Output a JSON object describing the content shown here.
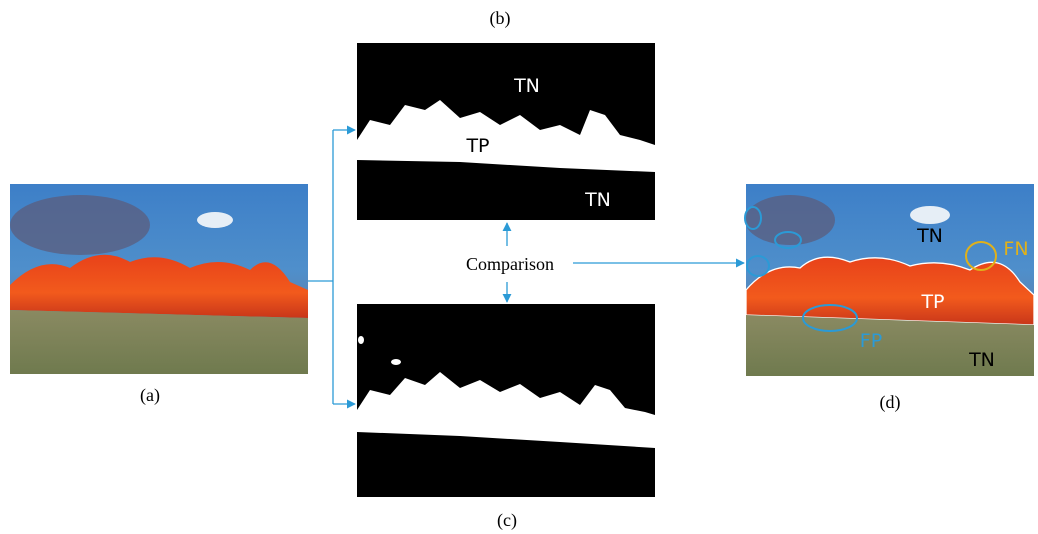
{
  "panels": {
    "a": {
      "label": "(a)"
    },
    "b": {
      "label": "(b)",
      "regions": [
        "TN",
        "TP",
        "TN"
      ]
    },
    "c": {
      "label": "(c)"
    },
    "d": {
      "label": "(d)",
      "regions": [
        "TN",
        "FN",
        "TP",
        "FP",
        "TN"
      ]
    }
  },
  "comparison": "Comparison"
}
